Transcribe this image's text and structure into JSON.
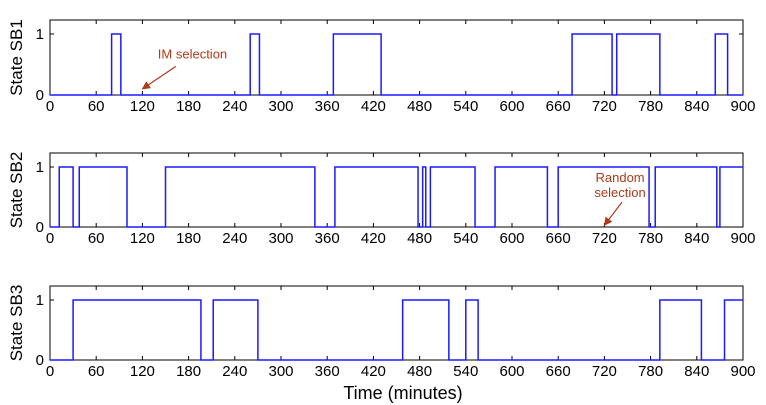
{
  "colors": {
    "series": "#1a1aff",
    "annotation": "#b03a1a",
    "axis": "#000000"
  },
  "chart_data": [
    {
      "type": "line",
      "ylabel": "State SB1",
      "xlim": [
        0,
        900
      ],
      "ylim": [
        0,
        1
      ],
      "x_ticks": [
        "0",
        "60",
        "120",
        "180",
        "240",
        "300",
        "360",
        "420",
        "480",
        "540",
        "600",
        "660",
        "720",
        "780",
        "840",
        "900"
      ],
      "y_ticks": [
        "0",
        "1"
      ],
      "intervals_on": [
        [
          80,
          92
        ],
        [
          260,
          272
        ],
        [
          368,
          430
        ],
        [
          678,
          730
        ],
        [
          736,
          792
        ],
        [
          864,
          880
        ]
      ],
      "annotation": {
        "text": "IM selection",
        "x": 140,
        "y": 0.6,
        "arrow_to": [
          120,
          0.1
        ]
      }
    },
    {
      "type": "line",
      "ylabel": "State SB2",
      "xlim": [
        0,
        900
      ],
      "ylim": [
        0,
        1
      ],
      "x_ticks": [
        "0",
        "60",
        "120",
        "180",
        "240",
        "300",
        "360",
        "420",
        "480",
        "540",
        "600",
        "660",
        "720",
        "780",
        "840",
        "900"
      ],
      "y_ticks": [
        "0",
        "1"
      ],
      "intervals_on": [
        [
          12,
          30
        ],
        [
          38,
          100
        ],
        [
          150,
          344
        ],
        [
          370,
          478
        ],
        [
          484,
          488
        ],
        [
          494,
          552
        ],
        [
          578,
          646
        ],
        [
          660,
          778
        ],
        [
          786,
          866
        ],
        [
          870,
          900
        ]
      ],
      "annotation": {
        "lines": [
          "Random",
          "selection"
        ],
        "x": 704,
        "y": 0.75,
        "arrow_to": [
          720,
          0.03
        ]
      }
    },
    {
      "type": "line",
      "ylabel": "State SB3",
      "xlim": [
        0,
        900
      ],
      "ylim": [
        0,
        1
      ],
      "x_ticks": [
        "0",
        "60",
        "120",
        "180",
        "240",
        "300",
        "360",
        "420",
        "480",
        "540",
        "600",
        "660",
        "720",
        "780",
        "840",
        "900"
      ],
      "y_ticks": [
        "0",
        "1"
      ],
      "intervals_on": [
        [
          30,
          196
        ],
        [
          212,
          270
        ],
        [
          458,
          518
        ],
        [
          540,
          556
        ],
        [
          792,
          846
        ],
        [
          876,
          900
        ]
      ],
      "xlabel": "Time (minutes)"
    }
  ]
}
